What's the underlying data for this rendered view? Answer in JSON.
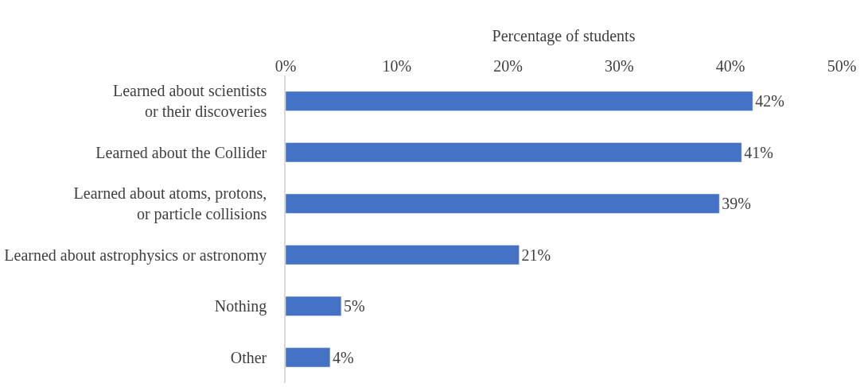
{
  "chart_data": {
    "type": "bar",
    "orientation": "horizontal",
    "xlabel": "Percentage of students",
    "categories": [
      "Learned about scientists\nor their discoveries",
      "Learned about the Collider",
      "Learned about atoms, protons,\nor particle collisions",
      "Learned about astrophysics or astronomy",
      "Nothing",
      "Other"
    ],
    "values": [
      42,
      41,
      39,
      21,
      5,
      4
    ],
    "value_labels": [
      "42%",
      "41%",
      "39%",
      "21%",
      "5%",
      "4%"
    ],
    "color": "#4472c4",
    "xlim": [
      0,
      50
    ],
    "xticks": [
      {
        "value": 0,
        "label": "0%"
      },
      {
        "value": 10,
        "label": "10%"
      },
      {
        "value": 20,
        "label": "20%"
      },
      {
        "value": 30,
        "label": "30%"
      },
      {
        "value": 40,
        "label": "40%"
      },
      {
        "value": 50,
        "label": "50%"
      }
    ],
    "grid": false,
    "legend": false
  }
}
